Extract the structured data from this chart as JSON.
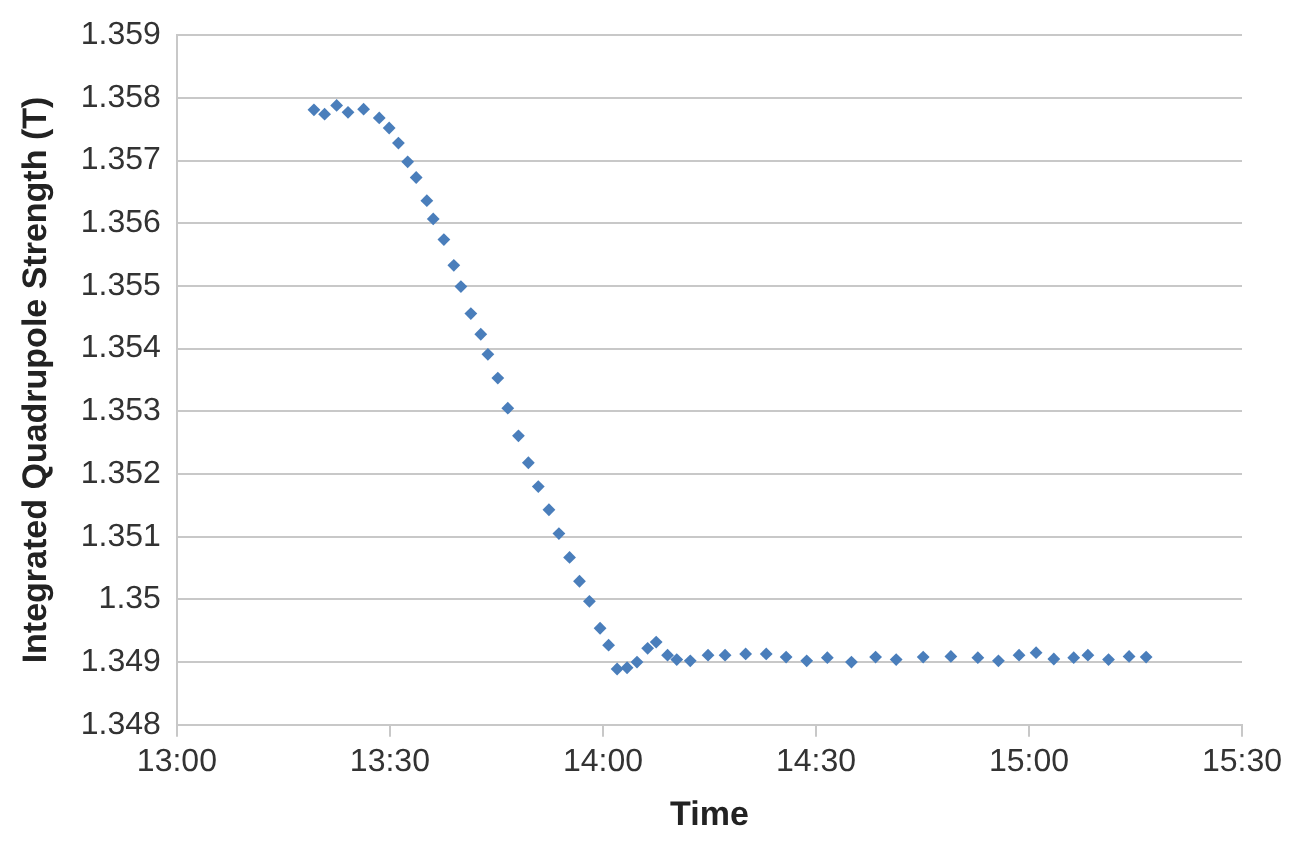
{
  "chart_data": {
    "type": "scatter",
    "xlabel": "Time",
    "ylabel": "Integrated Quadrupole Strength (T)",
    "marker": "diamond",
    "grid": "y",
    "legend": false,
    "xlim": [
      13,
      15.5
    ],
    "xticks": [
      {
        "value": 13,
        "label": "13:00"
      },
      {
        "value": 13.5,
        "label": "13:30"
      },
      {
        "value": 14,
        "label": "14:00"
      },
      {
        "value": 14.5,
        "label": "14:30"
      },
      {
        "value": 15,
        "label": "15:00"
      },
      {
        "value": 15.5,
        "label": "15:30"
      }
    ],
    "ylim": [
      1.348,
      1.359
    ],
    "yticks": [
      1.348,
      1.349,
      1.35,
      1.351,
      1.352,
      1.353,
      1.354,
      1.355,
      1.356,
      1.357,
      1.358,
      1.359
    ],
    "series": [
      {
        "color": "#4a7ebb",
        "x": [
          13.3217,
          13.3467,
          13.375,
          13.4017,
          13.4383,
          13.475,
          13.4983,
          13.52,
          13.5417,
          13.5617,
          13.5867,
          13.6017,
          13.6267,
          13.65,
          13.6667,
          13.69,
          13.7133,
          13.73,
          13.7533,
          13.7767,
          13.8017,
          13.825,
          13.8483,
          13.8733,
          13.8967,
          13.9217,
          13.945,
          13.9683,
          13.9933,
          14.0133,
          14.0333,
          14.0567,
          14.08,
          14.105,
          14.125,
          14.1517,
          14.1733,
          14.205,
          14.2467,
          14.2867,
          14.335,
          14.3833,
          14.43,
          14.4783,
          14.5267,
          14.5833,
          14.64,
          14.6883,
          14.7517,
          14.8167,
          14.88,
          14.9283,
          14.9767,
          15.0167,
          15.0583,
          15.105,
          15.1383,
          15.1867,
          15.235,
          15.275
        ],
        "values": [
          1.35781,
          1.35774,
          1.35788,
          1.35777,
          1.35782,
          1.35768,
          1.35752,
          1.35728,
          1.35698,
          1.35673,
          1.35636,
          1.35607,
          1.35574,
          1.35533,
          1.35499,
          1.35456,
          1.35423,
          1.35391,
          1.35353,
          1.35305,
          1.35261,
          1.35218,
          1.3518,
          1.35143,
          1.35105,
          1.35067,
          1.35029,
          1.34997,
          1.34954,
          1.34927,
          1.34889,
          1.34891,
          1.349,
          1.34922,
          1.34932,
          1.34911,
          1.34904,
          1.34902,
          1.34911,
          1.34911,
          1.34913,
          1.34913,
          1.34908,
          1.34902,
          1.34907,
          1.349,
          1.34908,
          1.34904,
          1.34908,
          1.34909,
          1.34907,
          1.34902,
          1.34911,
          1.34915,
          1.34905,
          1.34907,
          1.34911,
          1.34904,
          1.34909,
          1.34908
        ]
      }
    ]
  }
}
